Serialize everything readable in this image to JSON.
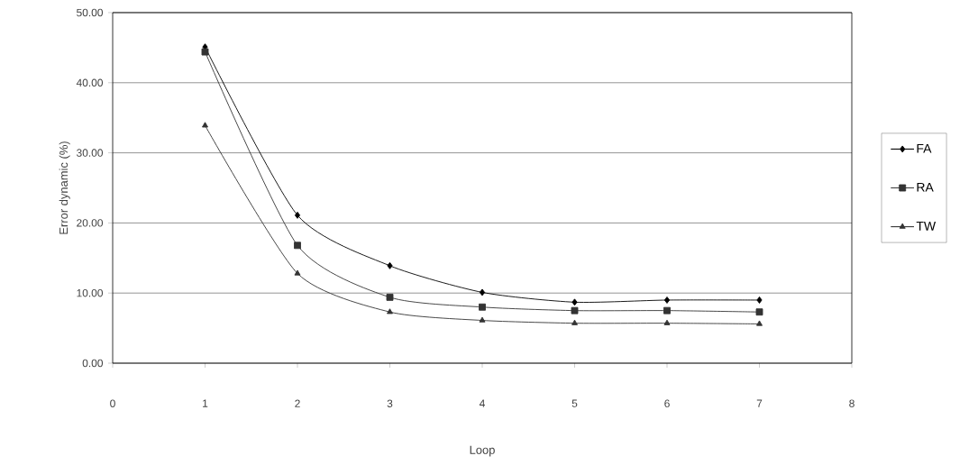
{
  "chart_data": {
    "type": "line",
    "xlabel": "Loop",
    "ylabel": "Error dynamic (%)",
    "x": [
      1,
      2,
      3,
      4,
      5,
      6,
      7
    ],
    "series": [
      {
        "name": "FA",
        "color": "#000000",
        "marker": "diamond",
        "values": [
          45.1,
          21.1,
          13.9,
          10.1,
          8.7,
          9.0,
          9.0
        ]
      },
      {
        "name": "RA",
        "color": "#333333",
        "marker": "square",
        "values": [
          44.4,
          16.8,
          9.4,
          8.0,
          7.5,
          7.5,
          7.3
        ]
      },
      {
        "name": "TW",
        "color": "#333333",
        "marker": "triangle",
        "values": [
          33.9,
          12.8,
          7.3,
          6.1,
          5.7,
          5.7,
          5.6
        ]
      }
    ],
    "xlim": [
      0,
      8
    ],
    "xticks": [
      0,
      1,
      2,
      3,
      4,
      5,
      6,
      7,
      8
    ],
    "ylim": [
      0,
      50
    ],
    "yticks": [
      {
        "value": 0,
        "label": "0.00"
      },
      {
        "value": 10,
        "label": "10.00"
      },
      {
        "value": 20,
        "label": "20.00"
      },
      {
        "value": 30,
        "label": "30.00"
      },
      {
        "value": 40,
        "label": "40.00"
      },
      {
        "value": 50,
        "label": "50.00"
      }
    ],
    "grid": "y",
    "legend": "right",
    "line_style": "solid"
  }
}
